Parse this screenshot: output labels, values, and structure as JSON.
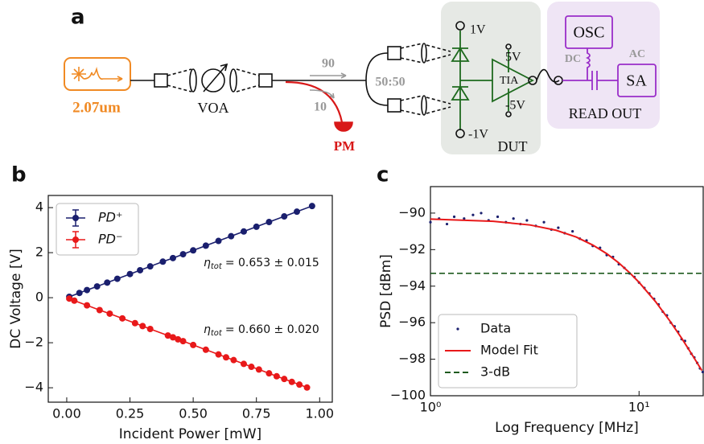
{
  "diagram": {
    "panel_label": "a",
    "source": "2.07um",
    "voa": "VOA",
    "tap_high": "90",
    "tap_low": "10",
    "power_meter": "PM",
    "splitter": "50:50",
    "bias_pos": "1V",
    "bias_neg": "-1V",
    "supply_pos": "5V",
    "supply_neg": "-5V",
    "amplifier": "TIA",
    "dut": "DUT",
    "oscilloscope": "OSC",
    "dc": "DC",
    "ac": "AC",
    "analyzer": "SA",
    "readout": "READ OUT"
  },
  "chart_data": [
    {
      "type": "line",
      "panel_label": "b",
      "xlabel": "Incident Power [mW]",
      "ylabel": "DC Voltage [V]",
      "xlim": [
        -0.073,
        1.05
      ],
      "ylim": [
        -4.64,
        4.54
      ],
      "xticks": [
        {
          "value": 0,
          "label": "0.00"
        },
        {
          "value": 0.25,
          "label": "0.25"
        },
        {
          "value": 0.5,
          "label": "0.50"
        },
        {
          "value": 0.75,
          "label": "0.75"
        },
        {
          "value": 1,
          "label": "1.00"
        }
      ],
      "yticks": [
        {
          "value": -4,
          "label": "−4"
        },
        {
          "value": -2,
          "label": "−2"
        },
        0,
        2,
        4
      ],
      "legend": "upper left",
      "series": [
        {
          "name": "PD⁺",
          "color": "#1a1f6e",
          "style": "line-markers",
          "x": [
            0.01,
            0.05,
            0.08,
            0.12,
            0.16,
            0.2,
            0.25,
            0.29,
            0.33,
            0.38,
            0.42,
            0.46,
            0.5,
            0.55,
            0.6,
            0.65,
            0.7,
            0.75,
            0.8,
            0.86,
            0.91,
            0.97
          ],
          "values": [
            0.04,
            0.21,
            0.34,
            0.5,
            0.67,
            0.84,
            1.05,
            1.22,
            1.39,
            1.6,
            1.76,
            1.93,
            2.1,
            2.31,
            2.52,
            2.73,
            2.94,
            3.15,
            3.36,
            3.61,
            3.82,
            4.07
          ]
        },
        {
          "name": "PD⁻",
          "color": "#e8191a",
          "style": "line-markers",
          "x": [
            0.01,
            0.03,
            0.08,
            0.13,
            0.17,
            0.22,
            0.27,
            0.3,
            0.33,
            0.4,
            0.42,
            0.44,
            0.46,
            0.5,
            0.55,
            0.6,
            0.63,
            0.66,
            0.7,
            0.73,
            0.76,
            0.8,
            0.83,
            0.86,
            0.89,
            0.92,
            0.95
          ],
          "values": [
            -0.04,
            -0.13,
            -0.34,
            -0.55,
            -0.71,
            -0.92,
            -1.13,
            -1.26,
            -1.39,
            -1.68,
            -1.76,
            -1.85,
            -1.93,
            -2.1,
            -2.31,
            -2.52,
            -2.65,
            -2.77,
            -2.94,
            -3.07,
            -3.19,
            -3.36,
            -3.49,
            -3.61,
            -3.74,
            -3.86,
            -3.99
          ]
        }
      ],
      "annotations": [
        {
          "symbol": "η",
          "subscript": "tot",
          "text": "= 0.653 ± 0.015"
        },
        {
          "symbol": "η",
          "subscript": "tot",
          "text": "= 0.660 ± 0.020"
        }
      ]
    },
    {
      "type": "line",
      "panel_label": "c",
      "xlabel": "Log Frequency [MHz]",
      "ylabel": "PSD [dBm]",
      "xscale": "log",
      "xlim": [
        1,
        20.3
      ],
      "ylim": [
        -100,
        -88.55
      ],
      "xticks": [
        {
          "value": 1,
          "label": "10⁰"
        },
        {
          "value": 10,
          "label": "10¹"
        }
      ],
      "yticks": [
        {
          "value": -100,
          "label": "−100"
        },
        {
          "value": -98,
          "label": "−98"
        },
        {
          "value": -96,
          "label": "−96"
        },
        {
          "value": -94,
          "label": "−94"
        },
        {
          "value": -92,
          "label": "−92"
        },
        {
          "value": -90,
          "label": "−90"
        }
      ],
      "legend": "lower left",
      "series": [
        {
          "name": "Data",
          "color": "#1a1f6e",
          "style": "points",
          "x": [
            1.0,
            1.1,
            1.2,
            1.3,
            1.45,
            1.6,
            1.75,
            1.9,
            2.1,
            2.3,
            2.5,
            2.7,
            2.9,
            3.2,
            3.5,
            3.8,
            4.1,
            4.4,
            4.8,
            5.2,
            5.6,
            6.0,
            6.5,
            7.0,
            7.5,
            8.0,
            8.5,
            9.0,
            9.5,
            10,
            10.6,
            11.2,
            11.8,
            12.4,
            13,
            13.6,
            14.2,
            14.8,
            15.4,
            16,
            16.6,
            17.2,
            17.8,
            18.4,
            19,
            19.6,
            20.2
          ],
          "values": [
            -90.5,
            -90.3,
            -90.6,
            -90.2,
            -90.3,
            -90.1,
            -90.0,
            -90.4,
            -90.2,
            -90.5,
            -90.3,
            -90.6,
            -90.4,
            -90.7,
            -90.5,
            -90.9,
            -90.8,
            -91.1,
            -91.0,
            -91.4,
            -91.5,
            -91.8,
            -91.9,
            -92.3,
            -92.4,
            -92.8,
            -93.0,
            -93.3,
            -93.5,
            -93.8,
            -94.1,
            -94.4,
            -94.7,
            -95.0,
            -95.4,
            -95.6,
            -96.0,
            -96.2,
            -96.5,
            -96.9,
            -97.0,
            -97.4,
            -97.7,
            -97.9,
            -98.2,
            -98.5,
            -98.7
          ]
        },
        {
          "name": "Model Fit",
          "color": "#e8191a",
          "style": "line",
          "x": [
            1,
            2,
            3,
            4,
            5,
            6,
            7,
            8,
            9,
            10,
            12,
            14,
            16,
            18,
            20
          ],
          "values": [
            -90.33,
            -90.45,
            -90.65,
            -90.94,
            -91.31,
            -91.75,
            -92.22,
            -92.73,
            -93.26,
            -93.79,
            -94.85,
            -95.88,
            -96.85,
            -97.77,
            -98.62
          ]
        },
        {
          "name": "3-dB",
          "color": "#1e5a1e",
          "style": "dashed",
          "x": [
            1,
            20.3
          ],
          "values": [
            -93.3,
            -93.3
          ]
        }
      ]
    }
  ]
}
